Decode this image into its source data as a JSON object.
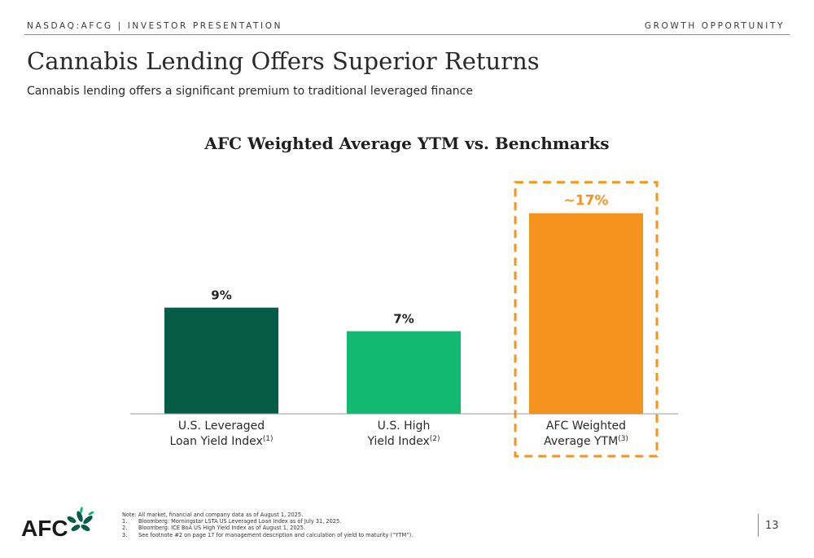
{
  "header": {
    "left": "NASDAQ:AFCG | INVESTOR PRESENTATION",
    "right": "GROWTH OPPORTUNITY"
  },
  "title": "Cannabis Lending Offers Superior Returns",
  "subtitle": "Cannabis lending offers a significant premium to traditional leveraged finance",
  "colors": {
    "dark_green": "#065c46",
    "green": "#10b870",
    "orange": "#f6921e",
    "axis": "#9a9a9a"
  },
  "chart_data": {
    "type": "bar",
    "title": "AFC Weighted Average YTM vs. Benchmarks",
    "categories": [
      {
        "lines": [
          "U.S. Leveraged",
          "Loan Yield Index"
        ],
        "footnote": "(1)"
      },
      {
        "lines": [
          "U.S. High",
          "Yield Index"
        ],
        "footnote": "(2)"
      },
      {
        "lines": [
          "AFC Weighted",
          "Average YTM"
        ],
        "footnote": "(3)"
      }
    ],
    "values": [
      9,
      7,
      17
    ],
    "data_labels": [
      "9%",
      "7%",
      "~17%"
    ],
    "highlight_index": 2,
    "ylim": [
      0,
      18.5
    ],
    "grid": false
  },
  "notes": {
    "intro": "Note: All market, financial and company data as of August 1, 2025.",
    "items": [
      {
        "num": "1.",
        "text": "Bloomberg: Morningstar LSTA US Leveraged Loan Index as of July 31, 2025."
      },
      {
        "num": "2.",
        "text": "Bloomberg: ICE BoA US High Yield Index as of August 1, 2025."
      },
      {
        "num": "3.",
        "text": "See footnote #2 on page 17 for management description and calculation of yield to maturity (“YTM”)."
      }
    ]
  },
  "logo": {
    "text": "AFC",
    "icon": "leaf-cluster-icon"
  },
  "page_number": "13"
}
